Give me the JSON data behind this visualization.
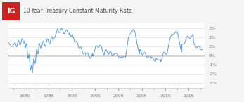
{
  "title": "10-Year Treasury Constant Maturity Rate",
  "ig_logo_text": "IG",
  "ig_logo_color": "#cc2222",
  "line_color": "#5b9bd5",
  "zero_line_color": "#444444",
  "background_color": "#f5f5f5",
  "plot_bg_color": "#ffffff",
  "header_bg_color": "#f5f5f5",
  "grid_color": "#dddddd",
  "yticks": [
    -3,
    -2,
    -1,
    0,
    1,
    2,
    3
  ],
  "ytick_labels": [
    "3%",
    "2%",
    "1%",
    "0%",
    "-1%",
    "-2%",
    "-3%"
  ],
  "xtick_years": [
    1980,
    1985,
    1990,
    1995,
    2000,
    2005,
    2010,
    2015
  ],
  "ylim": [
    -3.5,
    3.5
  ],
  "xlim_start": 1976.5,
  "xlim_end": 2018.5,
  "title_fontsize": 5.5,
  "tick_fontsize": 4.5,
  "logo_fontsize": 7
}
